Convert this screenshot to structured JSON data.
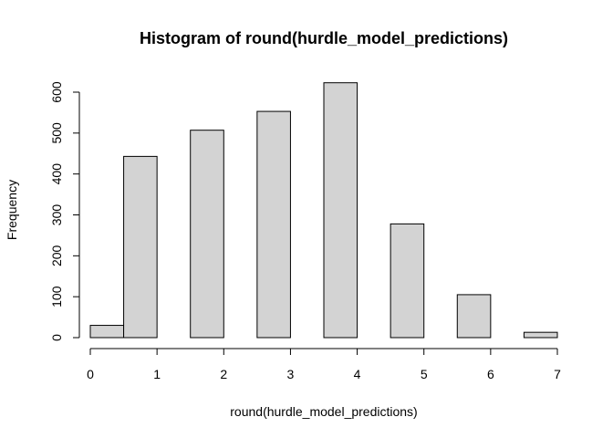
{
  "chart_data": {
    "type": "bar",
    "title": "Histogram of round(hurdle_model_predictions)",
    "xlabel": "round(hurdle_model_predictions)",
    "ylabel": "Frequency",
    "bins": [
      {
        "x0": 0.0,
        "x1": 0.5,
        "value": 30
      },
      {
        "x0": 0.5,
        "x1": 1.0,
        "value": 443
      },
      {
        "x0": 1.0,
        "x1": 1.5,
        "value": 0
      },
      {
        "x0": 1.5,
        "x1": 2.0,
        "value": 507
      },
      {
        "x0": 2.0,
        "x1": 2.5,
        "value": 0
      },
      {
        "x0": 2.5,
        "x1": 3.0,
        "value": 553
      },
      {
        "x0": 3.0,
        "x1": 3.5,
        "value": 0
      },
      {
        "x0": 3.5,
        "x1": 4.0,
        "value": 623
      },
      {
        "x0": 4.0,
        "x1": 4.5,
        "value": 0
      },
      {
        "x0": 4.5,
        "x1": 5.0,
        "value": 278
      },
      {
        "x0": 5.0,
        "x1": 5.5,
        "value": 0
      },
      {
        "x0": 5.5,
        "x1": 6.0,
        "value": 105
      },
      {
        "x0": 6.0,
        "x1": 6.5,
        "value": 0
      },
      {
        "x0": 6.5,
        "x1": 7.0,
        "value": 13
      }
    ],
    "xlim": [
      0,
      7
    ],
    "ylim": [
      0,
      600
    ],
    "xticks": [
      "0",
      "1",
      "2",
      "3",
      "4",
      "5",
      "6",
      "7"
    ],
    "yticks": [
      "0",
      "100",
      "200",
      "300",
      "400",
      "500",
      "600"
    ],
    "grid": false,
    "bar_color": "#d3d3d3",
    "edge_color": "#000000"
  }
}
